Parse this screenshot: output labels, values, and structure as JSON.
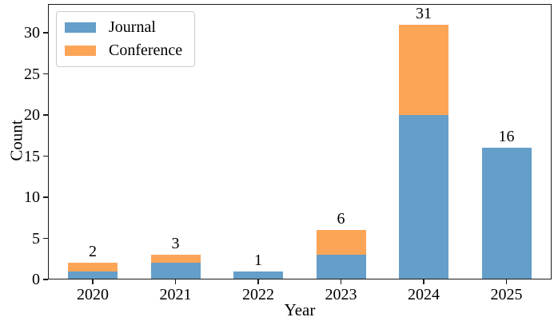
{
  "chart_data": {
    "type": "bar",
    "stacked": true,
    "title": "",
    "xlabel": "Year",
    "ylabel": "Count",
    "categories": [
      "2020",
      "2021",
      "2022",
      "2023",
      "2024",
      "2025"
    ],
    "series": [
      {
        "name": "Journal",
        "color": "#649EC9",
        "values": [
          1,
          2,
          1,
          3,
          20,
          16
        ]
      },
      {
        "name": "Conference",
        "color": "#FCA557",
        "values": [
          1,
          1,
          0,
          3,
          11,
          0
        ]
      }
    ],
    "totals": [
      2,
      3,
      1,
      6,
      31,
      16
    ],
    "bar_total_labels": [
      "2",
      "3",
      "1",
      "6",
      "31",
      "16"
    ],
    "yticks": [
      0,
      5,
      10,
      15,
      20,
      25,
      30
    ],
    "ylim": [
      0,
      33.5
    ],
    "grid": false,
    "legend_position": "upper left"
  },
  "colors": {
    "spine": "#1a1a1a",
    "text": "#000000",
    "legend_border": "#cccccc",
    "background": "#ffffff"
  }
}
